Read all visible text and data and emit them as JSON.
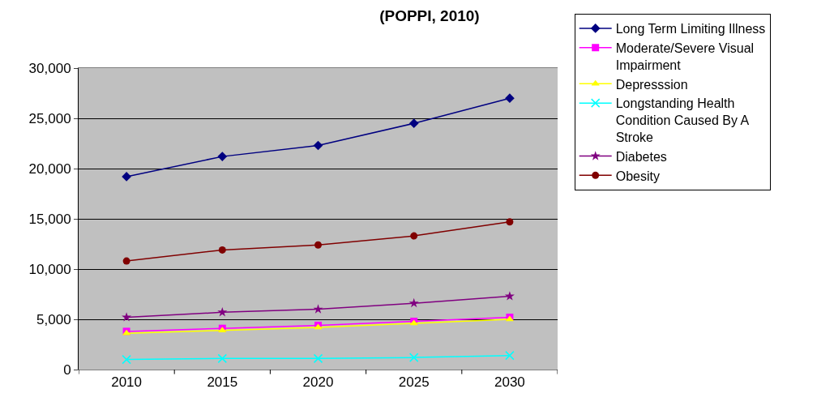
{
  "chart_data": {
    "type": "line",
    "title": "(POPPI, 2010)",
    "categories": [
      "2010",
      "2015",
      "2020",
      "2025",
      "2030"
    ],
    "ylim": [
      0,
      30000
    ],
    "yticks": [
      {
        "value": 0,
        "label": "0"
      },
      {
        "value": 5000,
        "label": "5,000"
      },
      {
        "value": 10000,
        "label": "10,000"
      },
      {
        "value": 15000,
        "label": "15,000"
      },
      {
        "value": 20000,
        "label": "20,000"
      },
      {
        "value": 25000,
        "label": "25,000"
      },
      {
        "value": 30000,
        "label": "30,000"
      }
    ],
    "grid": "y",
    "legend": "right",
    "line_style": "solid",
    "series": [
      {
        "name": "Long Term Limiting Illness",
        "color": "#000080",
        "marker": "diamond",
        "values": [
          19200,
          21200,
          22300,
          24500,
          27000
        ]
      },
      {
        "name": "Moderate/Severe Visual Impairment",
        "color": "#ff00ff",
        "marker": "square",
        "values": [
          3800,
          4100,
          4400,
          4800,
          5200
        ]
      },
      {
        "name": "Depresssion",
        "color": "#ffff00",
        "marker": "triangle",
        "values": [
          3600,
          3900,
          4200,
          4600,
          5000
        ]
      },
      {
        "name": "Longstanding Health Condition Caused By A Stroke",
        "color": "#00ffff",
        "marker": "cross",
        "values": [
          1000,
          1100,
          1100,
          1200,
          1400
        ]
      },
      {
        "name": "Diabetes",
        "color": "#800080",
        "marker": "star",
        "values": [
          5200,
          5700,
          6000,
          6600,
          7300
        ]
      },
      {
        "name": "Obesity",
        "color": "#800000",
        "marker": "circle",
        "values": [
          10800,
          11900,
          12400,
          13300,
          14700
        ]
      }
    ]
  }
}
